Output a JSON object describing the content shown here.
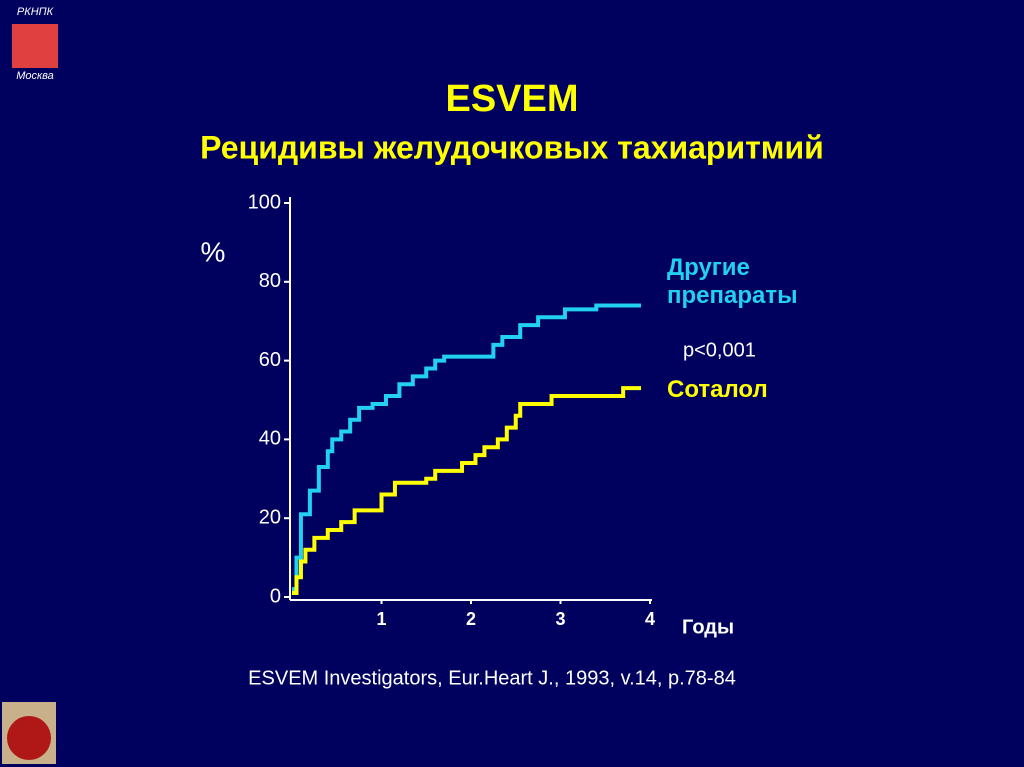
{
  "header": {
    "logo_top": "РКНПК",
    "logo_bottom": "Москва"
  },
  "chart_data": {
    "type": "step",
    "title": "ESVEM",
    "subtitle": "Рецидивы желудочковых тахиаритмий",
    "y_label": "%",
    "x_label": "Годы",
    "annotation": "p<0,001",
    "xlim": [
      0,
      4
    ],
    "xticks": [
      1,
      2,
      3,
      4
    ],
    "ylim": [
      0,
      100
    ],
    "yticks": [
      0,
      20,
      40,
      60,
      80,
      100
    ],
    "series": [
      {
        "name": "Другие препараты",
        "color": "#22d0f0",
        "x": [
          0,
          0.05,
          0.1,
          0.2,
          0.3,
          0.4,
          0.45,
          0.55,
          0.65,
          0.75,
          0.9,
          1.05,
          1.2,
          1.35,
          1.5,
          1.6,
          1.7,
          2.25,
          2.35,
          2.55,
          2.75,
          3.05,
          3.4,
          3.9
        ],
        "values": [
          2,
          10,
          21,
          27,
          33,
          37,
          40,
          42,
          45,
          48,
          49,
          51,
          54,
          56,
          58,
          60,
          61,
          64,
          66,
          69,
          71,
          73,
          74,
          74
        ]
      },
      {
        "name": "Соталол",
        "color": "#ffff00",
        "x": [
          0,
          0.05,
          0.1,
          0.15,
          0.25,
          0.4,
          0.55,
          0.7,
          1.0,
          1.15,
          1.5,
          1.6,
          1.9,
          2.05,
          2.15,
          2.3,
          2.4,
          2.5,
          2.55,
          2.9,
          3.7,
          3.9
        ],
        "values": [
          1,
          5,
          9,
          12,
          15,
          17,
          19,
          22,
          26,
          29,
          30,
          32,
          34,
          36,
          38,
          40,
          43,
          46,
          49,
          51,
          53,
          53
        ]
      }
    ],
    "source": "ESVEM Investigators, Eur.Heart J., 1993, v.14, p.78-84"
  }
}
